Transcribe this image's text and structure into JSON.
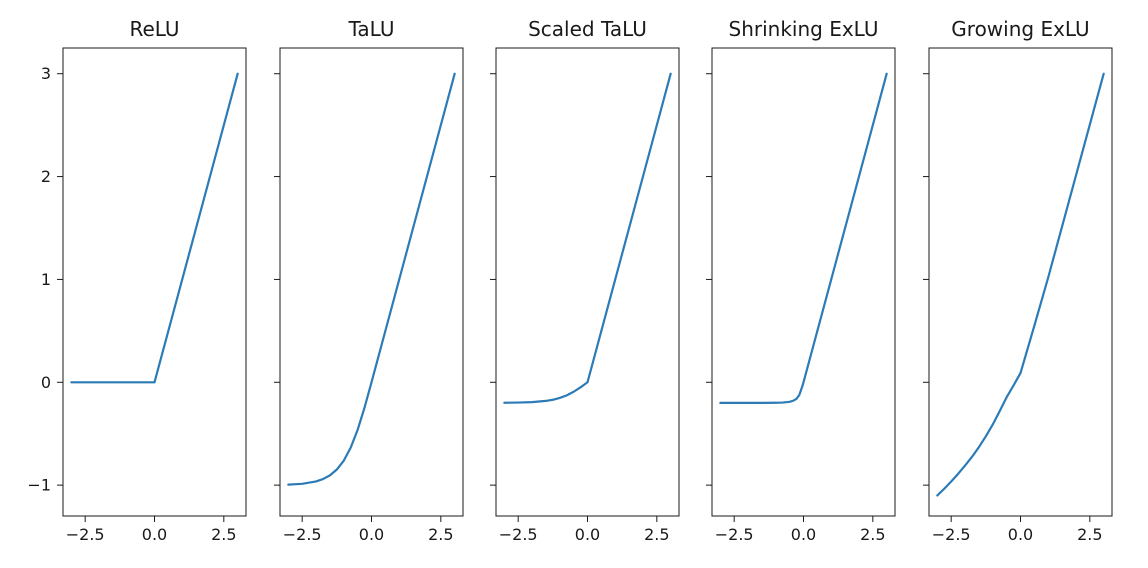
{
  "chart_data": {
    "type": "line",
    "layout": "1x5 subplots, shared y axis",
    "grid": false,
    "line_color": "#2c7bb6",
    "xlim": [
      -3.3,
      3.3
    ],
    "ylim": [
      -1.3,
      3.25
    ],
    "x_ticks": [
      -2.5,
      0.0,
      2.5
    ],
    "x_tick_labels": [
      "−2.5",
      "0.0",
      "2.5"
    ],
    "y_ticks": [
      -1,
      0,
      1,
      2,
      3
    ],
    "y_tick_labels": [
      "−1",
      "0",
      "1",
      "2",
      "3"
    ],
    "panels": [
      {
        "title": "ReLU",
        "x": [
          -3.0,
          -2.5,
          -2.0,
          -1.5,
          -1.0,
          -0.5,
          0.0,
          3.0
        ],
        "y": [
          0.0,
          0.0,
          0.0,
          0.0,
          0.0,
          0.0,
          0.0,
          3.0
        ]
      },
      {
        "title": "TaLU",
        "x": [
          -3.0,
          -2.5,
          -2.0,
          -1.75,
          -1.5,
          -1.25,
          -1.0,
          -0.75,
          -0.5,
          -0.25,
          0.0,
          3.0
        ],
        "y": [
          -0.995,
          -0.987,
          -0.964,
          -0.941,
          -0.905,
          -0.848,
          -0.762,
          -0.635,
          -0.462,
          -0.245,
          0.0,
          3.0
        ]
      },
      {
        "title": "Scaled TaLU",
        "x": [
          -3.0,
          -2.5,
          -2.0,
          -1.5,
          -1.25,
          -1.0,
          -0.75,
          -0.5,
          -0.25,
          0.0,
          3.0
        ],
        "y": [
          -0.199,
          -0.197,
          -0.193,
          -0.181,
          -0.17,
          -0.152,
          -0.127,
          -0.092,
          -0.049,
          0.0,
          3.0
        ]
      },
      {
        "title": "Shrinking ExLU",
        "x": [
          -3.0,
          -2.5,
          -2.0,
          -1.5,
          -1.0,
          -0.75,
          -0.5,
          -0.35,
          -0.25,
          -0.15,
          -0.05,
          0.0,
          3.0
        ],
        "y": [
          -0.2,
          -0.2,
          -0.2,
          -0.2,
          -0.199,
          -0.197,
          -0.19,
          -0.177,
          -0.16,
          -0.122,
          -0.045,
          0.0,
          3.0
        ]
      },
      {
        "title": "Growing ExLU",
        "x": [
          -3.0,
          -2.75,
          -2.5,
          -2.25,
          -2.0,
          -1.75,
          -1.5,
          -1.25,
          -1.0,
          -0.75,
          -0.5,
          -0.25,
          0.0,
          0.5,
          1.0,
          3.0
        ],
        "y": [
          -1.1,
          -1.035,
          -0.965,
          -0.89,
          -0.81,
          -0.725,
          -0.63,
          -0.525,
          -0.41,
          -0.28,
          -0.145,
          -0.03,
          0.09,
          0.55,
          1.02,
          3.0
        ]
      }
    ]
  }
}
